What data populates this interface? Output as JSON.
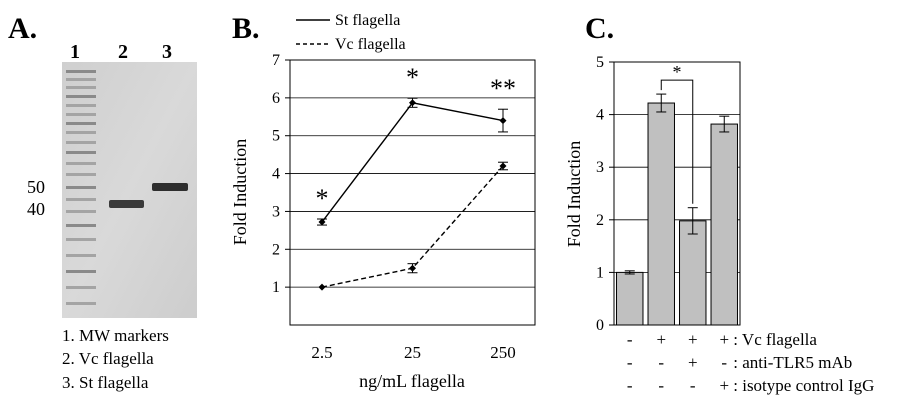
{
  "panels": {
    "a": {
      "label": "A.",
      "lane_numbers": [
        "1",
        "2",
        "3"
      ],
      "mw_ticks": [
        "50",
        "40"
      ],
      "legend": [
        "1. MW markers",
        "2. Vc flagella",
        "3. St flagella"
      ]
    },
    "b": {
      "label": "B."
    },
    "c": {
      "label": "C."
    }
  },
  "chart_data": [
    {
      "panel": "B",
      "type": "line",
      "x": [
        "2.5",
        "25",
        "250"
      ],
      "xlabel": "ng/mL flagella",
      "ylabel": "Fold Induction",
      "ylim": [
        0,
        7
      ],
      "yticks": [
        "1",
        "2",
        "3",
        "4",
        "5",
        "6",
        "7"
      ],
      "grid": true,
      "legend_position": "top",
      "series": [
        {
          "name": "St flagella",
          "style": "solid",
          "values": [
            2.72,
            5.87,
            5.4
          ],
          "errors": [
            0.08,
            0.12,
            0.3
          ]
        },
        {
          "name": "Vc flagella",
          "style": "dashed",
          "values": [
            1.0,
            1.5,
            4.2
          ],
          "errors": [
            0.0,
            0.12,
            0.1
          ]
        }
      ],
      "annotations": [
        "*",
        "*",
        "**"
      ]
    },
    {
      "panel": "C",
      "type": "bar",
      "ylabel": "Fold Induction",
      "ylim": [
        0,
        5
      ],
      "yticks": [
        "0",
        "1",
        "2",
        "3",
        "4",
        "5"
      ],
      "grid": true,
      "values": [
        1.0,
        4.22,
        1.98,
        3.82
      ],
      "errors": [
        0.03,
        0.17,
        0.25,
        0.15
      ],
      "bar_color": "#c0c0c0",
      "significance": "*",
      "conditions": [
        {
          "signs": [
            "-",
            "+",
            "+",
            "+"
          ],
          "label": ": Vc flagella"
        },
        {
          "signs": [
            "-",
            "-",
            "+",
            "-"
          ],
          "label": ": anti-TLR5 mAb"
        },
        {
          "signs": [
            "-",
            "-",
            "-",
            "+"
          ],
          "label": ": isotype control IgG"
        }
      ]
    }
  ]
}
